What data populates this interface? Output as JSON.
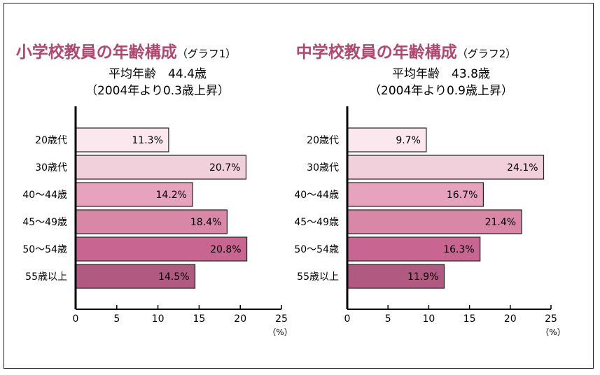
{
  "colors": {
    "title": "#b0486e",
    "bar_fills": [
      "#fbe7ee",
      "#f1cfdb",
      "#e7a3bd",
      "#d987a6",
      "#c86590",
      "#b05a82"
    ],
    "bar_stroke": "#222222",
    "axis": "#000000"
  },
  "chart_data": [
    {
      "type": "bar",
      "orientation": "horizontal",
      "title": "小学校教員の年齢構成",
      "title_suffix": "（グラフ1）",
      "subtitle": "平均年齢　44.4歳",
      "subtitle2": "（2004年より0.3歳上昇）",
      "categories": [
        "20歳代",
        "30歳代",
        "40～44歳",
        "45～49歳",
        "50～54歳",
        "55歳以上"
      ],
      "values": [
        11.3,
        20.7,
        14.2,
        18.4,
        20.8,
        14.5
      ],
      "value_labels": [
        "11.3%",
        "20.7%",
        "14.2%",
        "18.4%",
        "20.8%",
        "14.5%"
      ],
      "xlim": [
        0,
        25
      ],
      "xticks": [
        0,
        5,
        10,
        15,
        20,
        25
      ],
      "xunit": "（%）",
      "grid": false
    },
    {
      "type": "bar",
      "orientation": "horizontal",
      "title": "中学校教員の年齢構成",
      "title_suffix": "（グラフ2）",
      "subtitle": "平均年齢　43.8歳",
      "subtitle2": "（2004年より0.9歳上昇）",
      "categories": [
        "20歳代",
        "30歳代",
        "40～44歳",
        "45～49歳",
        "50～54歳",
        "55歳以上"
      ],
      "values": [
        9.7,
        24.1,
        16.7,
        21.4,
        16.3,
        11.9
      ],
      "value_labels": [
        "9.7%",
        "24.1%",
        "16.7%",
        "21.4%",
        "16.3%",
        "11.9%"
      ],
      "xlim": [
        0,
        25
      ],
      "xticks": [
        0,
        5,
        10,
        15,
        20,
        25
      ],
      "xunit": "（%）",
      "grid": false
    }
  ]
}
